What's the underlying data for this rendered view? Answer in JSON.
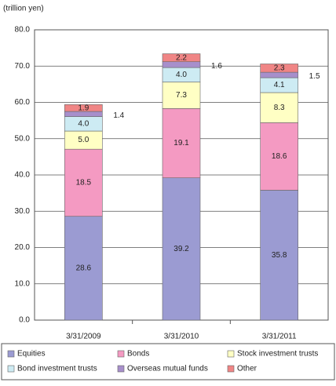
{
  "chart_data": {
    "type": "bar",
    "stacked": true,
    "y_label": "(trillion yen)",
    "categories": [
      "3/31/2009",
      "3/31/2010",
      "3/31/2011"
    ],
    "series": [
      {
        "name": "Equities",
        "color": "#9b9bd2",
        "values": [
          28.6,
          39.2,
          35.8
        ],
        "value_labels": [
          "28.6",
          "39.2",
          "35.8"
        ]
      },
      {
        "name": "Bonds",
        "color": "#f49ac2",
        "values": [
          18.5,
          19.1,
          18.6
        ],
        "value_labels": [
          "18.5",
          "19.1",
          "18.6"
        ]
      },
      {
        "name": "Stock investment trusts",
        "color": "#ffffc4",
        "values": [
          5.0,
          7.3,
          8.3
        ],
        "value_labels": [
          "5.0",
          "7.3",
          "8.3"
        ]
      },
      {
        "name": "Bond investment trusts",
        "color": "#cdebf3",
        "values": [
          4.0,
          4.0,
          4.1
        ],
        "value_labels": [
          "4.0",
          "4.0",
          "4.1"
        ]
      },
      {
        "name": "Overseas mutual funds",
        "color": "#a78fcb",
        "values": [
          1.4,
          1.6,
          1.5
        ],
        "value_labels": [
          "1.4",
          "1.6",
          "1.5"
        ]
      },
      {
        "name": "Other",
        "color": "#f08585",
        "values": [
          1.9,
          2.2,
          2.3
        ],
        "value_labels": [
          "1.9",
          "2.2",
          "2.3"
        ]
      }
    ],
    "ylim": [
      0,
      80
    ],
    "yticks": [
      {
        "value": 0,
        "label": "0.0"
      },
      {
        "value": 10,
        "label": "10.0"
      },
      {
        "value": 20,
        "label": "20.0"
      },
      {
        "value": 30,
        "label": "30.0"
      },
      {
        "value": 40,
        "label": "40.0"
      },
      {
        "value": 50,
        "label": "50.0"
      },
      {
        "value": 60,
        "label": "60.0"
      },
      {
        "value": 70,
        "label": "70.0"
      },
      {
        "value": 80,
        "label": "80.0"
      }
    ],
    "grid": true
  }
}
